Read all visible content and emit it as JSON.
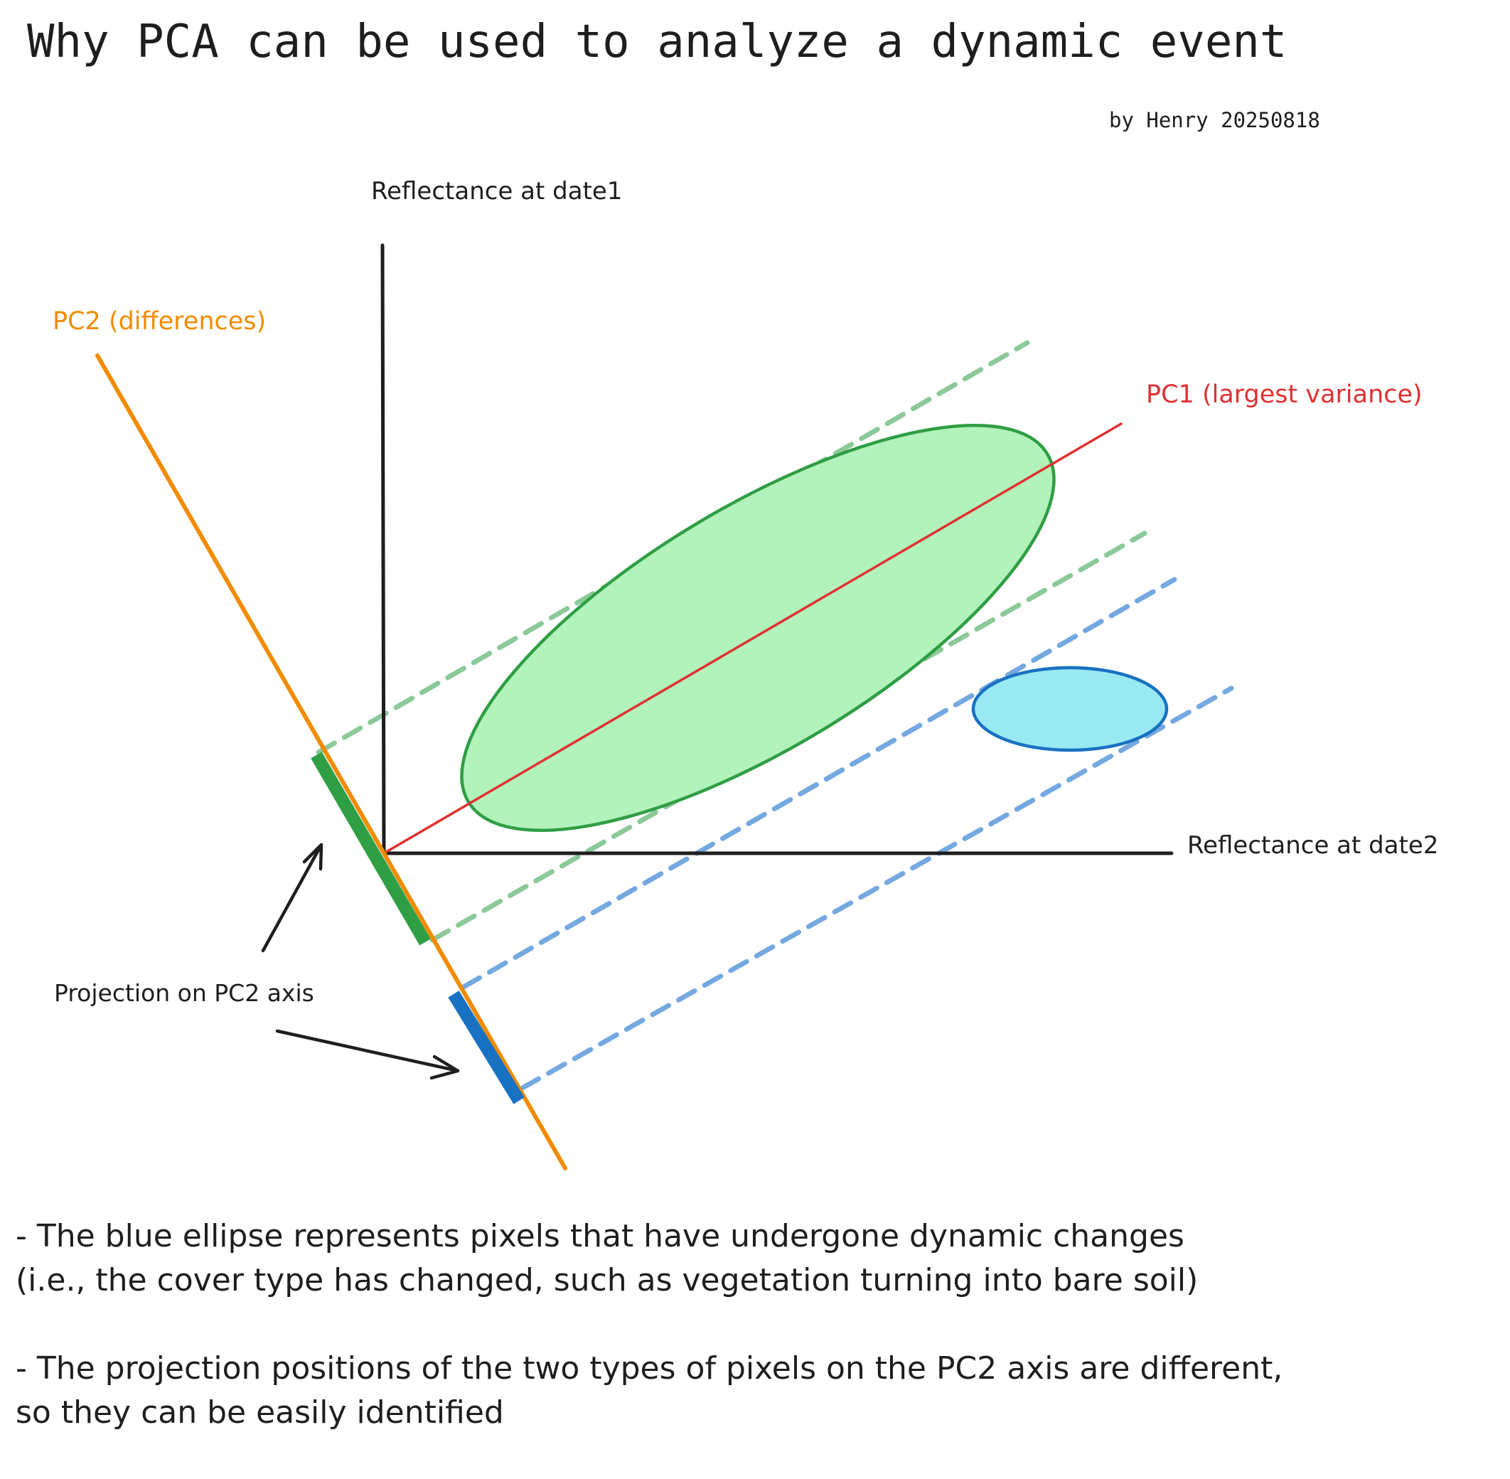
{
  "title": "Why PCA can be used to analyze a dynamic event",
  "byline": "by Henry 20250818",
  "labels": {
    "y_axis": "Reflectance at date1",
    "x_axis": "Reflectance at date2",
    "pc1": "PC1 (largest variance)",
    "pc2": "PC2 (differences)",
    "projection": "Projection on PC2 axis"
  },
  "notes": [
    {
      "line1": "- The blue ellipse represents pixels that have undergone dynamic changes",
      "line2": "(i.e., the cover type has changed, such as vegetation turning into bare soil)"
    },
    {
      "line1": "- The projection positions of the two types of pixels on the PC2 axis are different,",
      "line2": "so they can be easily identified"
    }
  ],
  "colors": {
    "axis": "#1e1e1e",
    "pc1": "#e03131",
    "pc2": "#f08c00",
    "green_fill": "#b2f2bb",
    "green_stroke": "#2f9e44",
    "green_dash": "#8cc999",
    "blue_fill": "#99e9f2",
    "blue_stroke": "#1971c2",
    "blue_dash": "#74a8e0",
    "text": "#1e1e1e"
  }
}
